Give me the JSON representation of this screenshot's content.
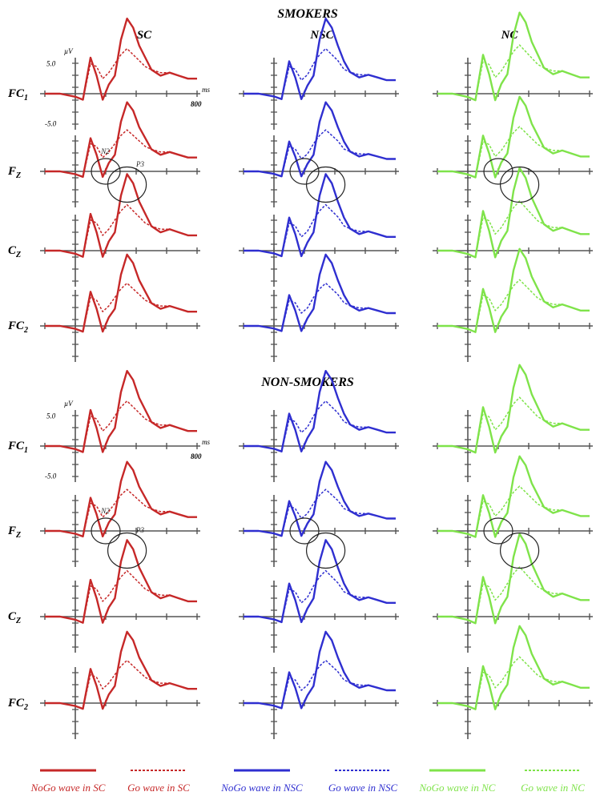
{
  "chart_data": {
    "type": "line",
    "description_units": {
      "x": "ms",
      "y": "µV"
    },
    "groups": [
      {
        "title": "SMOKERS"
      },
      {
        "title": "NON-SMOKERS"
      }
    ],
    "columns": [
      {
        "title": "SC",
        "color": "#c62828"
      },
      {
        "title": "NSC",
        "color": "#2f2fd0"
      },
      {
        "title": "NC",
        "color": "#7fe34a"
      }
    ],
    "electrodes": [
      {
        "name": "FC",
        "sub": "1"
      },
      {
        "name": "F",
        "sub": "Z"
      },
      {
        "name": "C",
        "sub": "Z"
      },
      {
        "name": "FC",
        "sub": "2"
      }
    ],
    "axis": {
      "x_unit": "ms",
      "y_unit": "µV",
      "x_end_label": "800",
      "y_pos_label": "5.0",
      "y_neg_label": "-5.0",
      "xlim": [
        -200,
        800
      ],
      "ylim": [
        -9,
        13
      ]
    },
    "annotations": {
      "n2": "N2",
      "p3": "P3"
    },
    "legend": [
      {
        "label": "NoGo wave in SC",
        "color": "#c62828",
        "dashed": false
      },
      {
        "label": "Go wave in SC",
        "color": "#c62828",
        "dashed": true
      },
      {
        "label": "NoGo wave in NSC",
        "color": "#2f2fd0",
        "dashed": false
      },
      {
        "label": "Go wave in NSC",
        "color": "#2f2fd0",
        "dashed": true
      },
      {
        "label": "NoGo wave in NC",
        "color": "#7fe34a",
        "dashed": false
      },
      {
        "label": "Go wave in NC",
        "color": "#7fe34a",
        "dashed": true
      }
    ],
    "series": [
      {
        "name": "NoGo wave",
        "style": "solid",
        "x": [
          -200,
          -100,
          0,
          50,
          100,
          140,
          180,
          220,
          260,
          300,
          340,
          380,
          420,
          460,
          500,
          560,
          620,
          680,
          740,
          800
        ],
        "y": [
          0,
          0,
          -0.5,
          -1,
          6,
          3,
          -1,
          1.5,
          3,
          9,
          12.5,
          11,
          8,
          6,
          4,
          3,
          3.5,
          3,
          2.5,
          2.5
        ]
      },
      {
        "name": "Go wave",
        "style": "dashed",
        "x": [
          -200,
          -100,
          0,
          50,
          100,
          140,
          180,
          220,
          260,
          300,
          340,
          380,
          420,
          460,
          500,
          560,
          620,
          680,
          740,
          800
        ],
        "y": [
          0,
          0,
          -0.5,
          -1,
          5,
          4.5,
          2.5,
          3.5,
          5,
          6.5,
          7.5,
          6.5,
          5.5,
          4.5,
          4,
          3.5,
          3.5,
          3,
          2.5,
          2.5
        ]
      }
    ]
  }
}
